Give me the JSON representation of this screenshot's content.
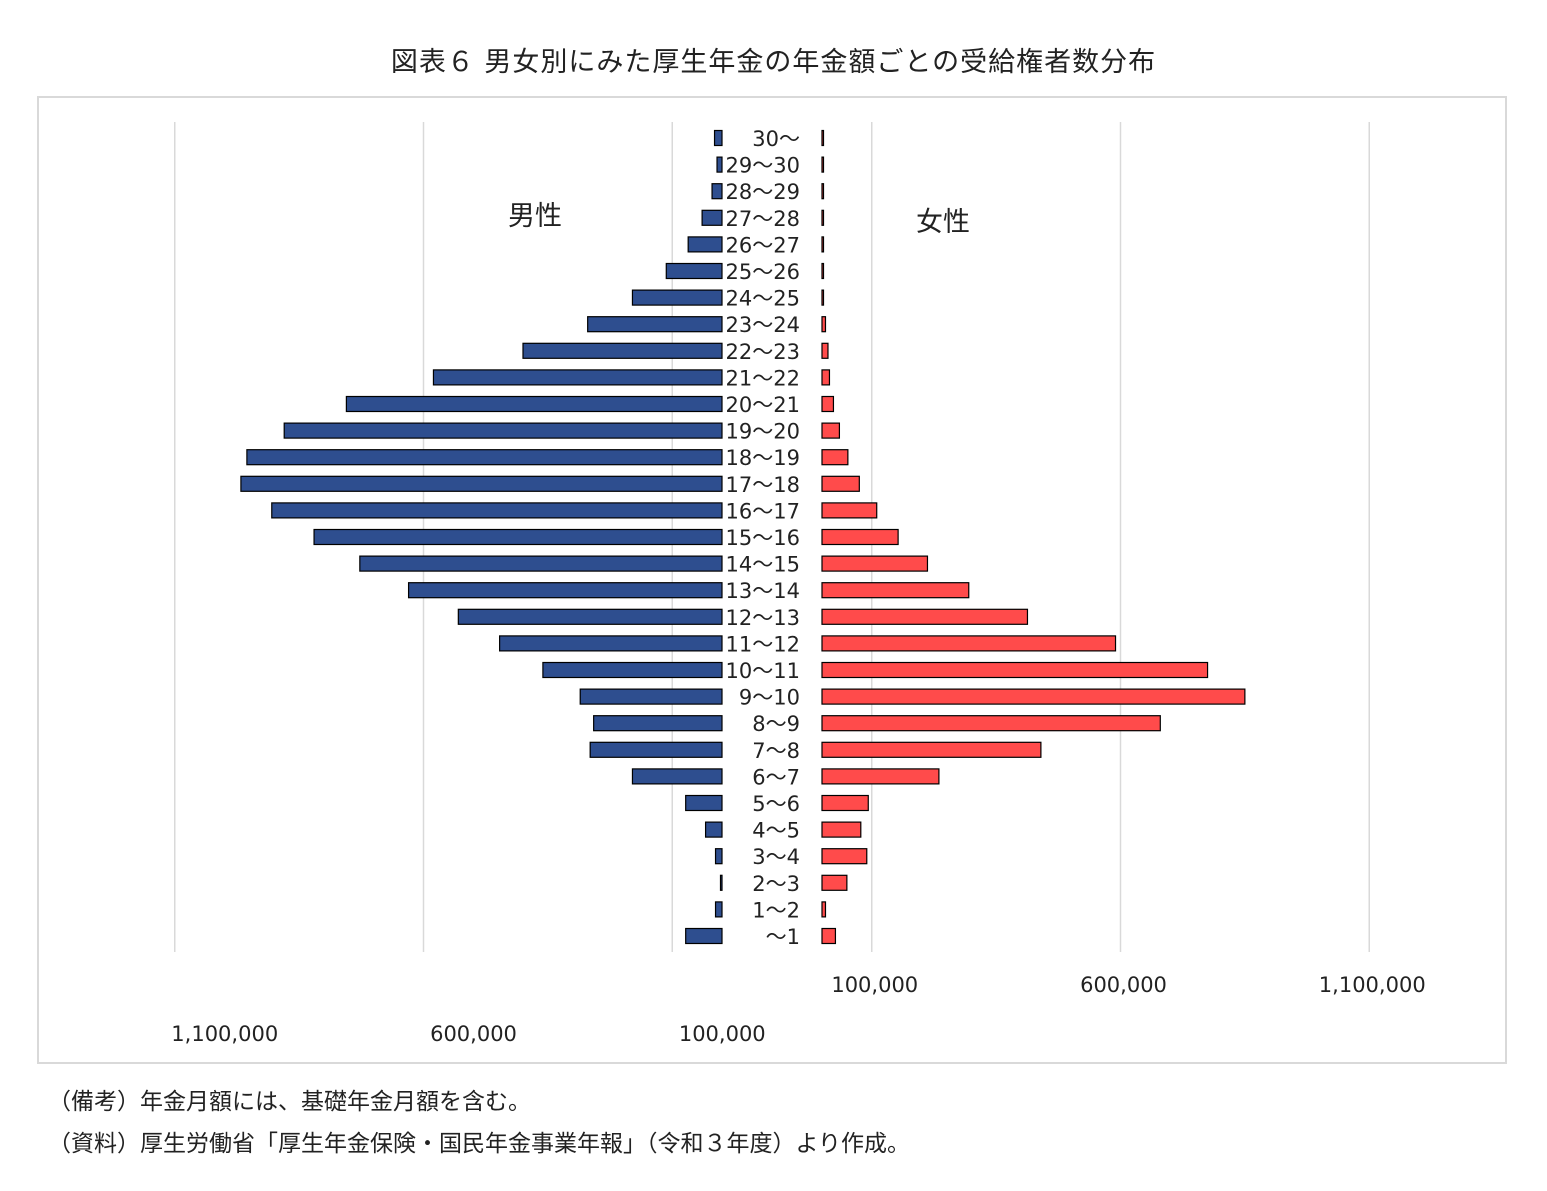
{
  "title": "図表６ 男女別にみた厚生年金の年金額ごとの受給権者数分布",
  "notes": [
    "（備考）年金月額には、基礎年金月額を含む。",
    "（資料）厚生労働省「厚生年金保険・国民年金事業年報」（令和３年度）より作成。"
  ],
  "chart_data": {
    "type": "bar",
    "orientation": "horizontal-population-pyramid",
    "categories": [
      "30～",
      "29～30",
      "28～29",
      "27～28",
      "26～27",
      "25～26",
      "24～25",
      "23～24",
      "22～23",
      "21～22",
      "20～21",
      "19～20",
      "18～19",
      "17～18",
      "16～17",
      "15～16",
      "14～15",
      "13～14",
      "12～13",
      "11～12",
      "10～11",
      "9～10",
      "8～9",
      "7～8",
      "6～7",
      "5～6",
      "4～5",
      "3～4",
      "2～3",
      "1～2",
      "～1"
    ],
    "series": [
      {
        "name": "男性",
        "side": "left",
        "color": "#2e4e8f",
        "values": [
          15000,
          10000,
          20000,
          40000,
          68000,
          112000,
          180000,
          270000,
          400000,
          580000,
          755000,
          880000,
          955000,
          967000,
          905000,
          820000,
          728000,
          630000,
          530000,
          447000,
          360000,
          285000,
          258000,
          265000,
          180000,
          73000,
          33000,
          13000,
          3000,
          13000,
          73000
        ]
      },
      {
        "name": "女性",
        "side": "right",
        "color": "#ff4b4b",
        "values": [
          2000,
          2000,
          2000,
          2000,
          2000,
          2000,
          3000,
          7000,
          12000,
          15000,
          23000,
          35000,
          52000,
          75000,
          110000,
          153000,
          212000,
          295000,
          413000,
          590000,
          775000,
          850000,
          680000,
          440000,
          235000,
          93000,
          78000,
          90000,
          50000,
          7000,
          27000
        ]
      }
    ],
    "x_ticks_left": [
      "1,100,000",
      "600,000",
      "100,000"
    ],
    "x_ticks_right": [
      "100,000",
      "600,000",
      "1,100,000"
    ],
    "xlim": [
      0,
      1100000
    ],
    "grid": true,
    "annotations": [
      "男性",
      "女性"
    ]
  }
}
